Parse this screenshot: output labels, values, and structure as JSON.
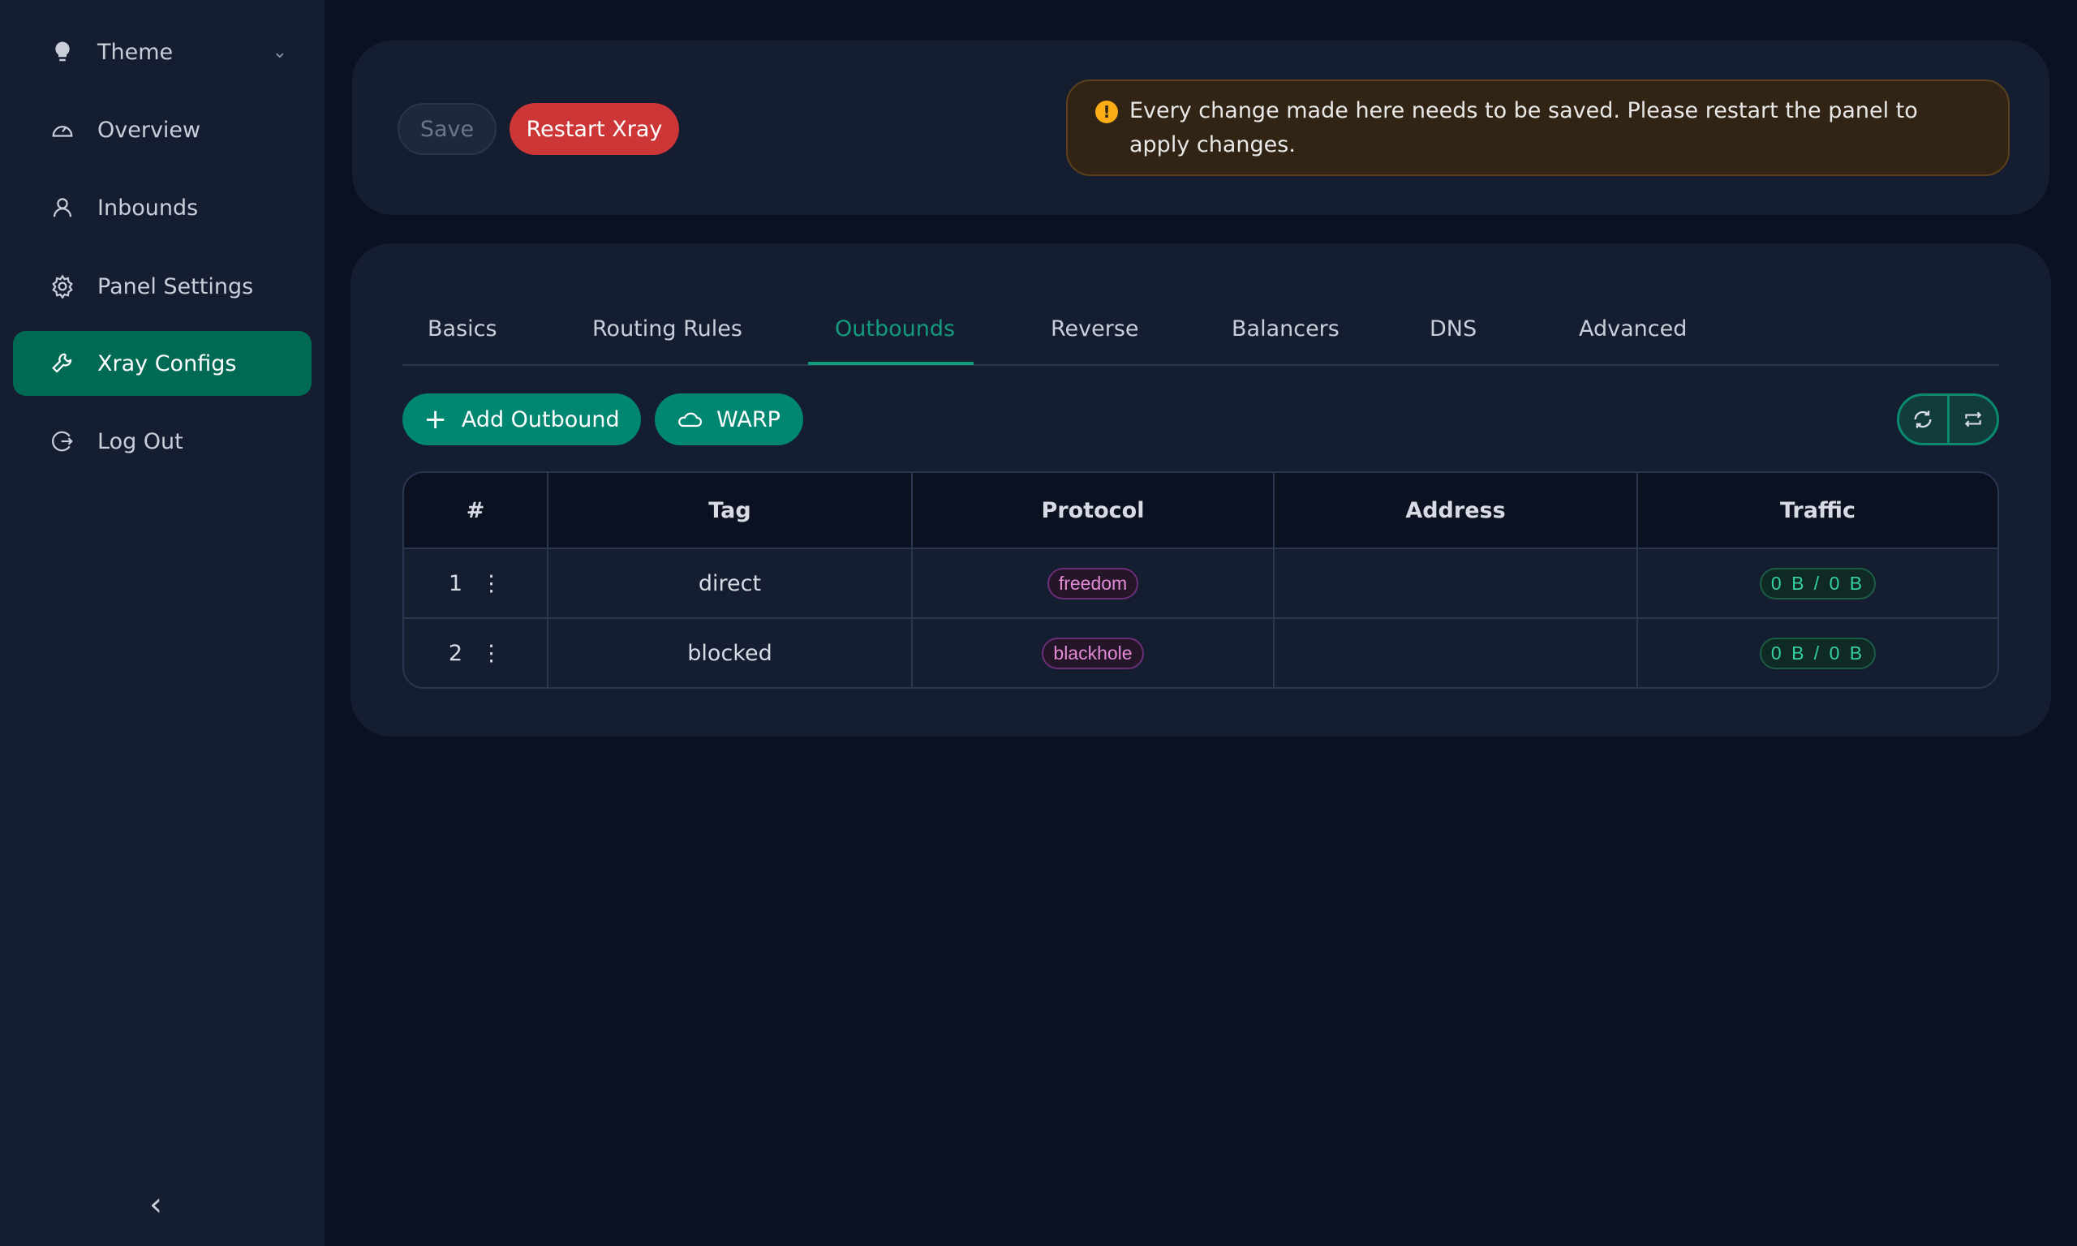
{
  "sidebar": {
    "items": [
      {
        "label": "Theme",
        "icon": "bulb-icon"
      },
      {
        "label": "Overview",
        "icon": "dashboard-icon"
      },
      {
        "label": "Inbounds",
        "icon": "user-icon"
      },
      {
        "label": "Panel Settings",
        "icon": "gear-icon"
      },
      {
        "label": "Xray Configs",
        "icon": "wrench-icon",
        "active": true
      },
      {
        "label": "Log Out",
        "icon": "logout-icon"
      }
    ],
    "collapse": "‹"
  },
  "toolbar": {
    "save": "Save",
    "restart": "Restart Xray"
  },
  "alert": {
    "text": "Every change made here needs to be saved. Please restart the panel to apply changes."
  },
  "tabs": [
    "Basics",
    "Routing Rules",
    "Outbounds",
    "Reverse",
    "Balancers",
    "DNS",
    "Advanced"
  ],
  "active_tab": "Outbounds",
  "actions": {
    "add": "Add Outbound",
    "warp": "WARP"
  },
  "table": {
    "headers": [
      "#",
      "Tag",
      "Protocol",
      "Address",
      "Traffic"
    ],
    "rows": [
      {
        "index": "1",
        "tag": "direct",
        "protocol": "freedom",
        "address": "",
        "traffic": "0 B / 0 B"
      },
      {
        "index": "2",
        "tag": "blocked",
        "protocol": "blackhole",
        "address": "",
        "traffic": "0 B / 0 B"
      }
    ]
  },
  "colors": {
    "accent": "#008771",
    "danger": "#cc3636",
    "warning": "#faad14"
  }
}
